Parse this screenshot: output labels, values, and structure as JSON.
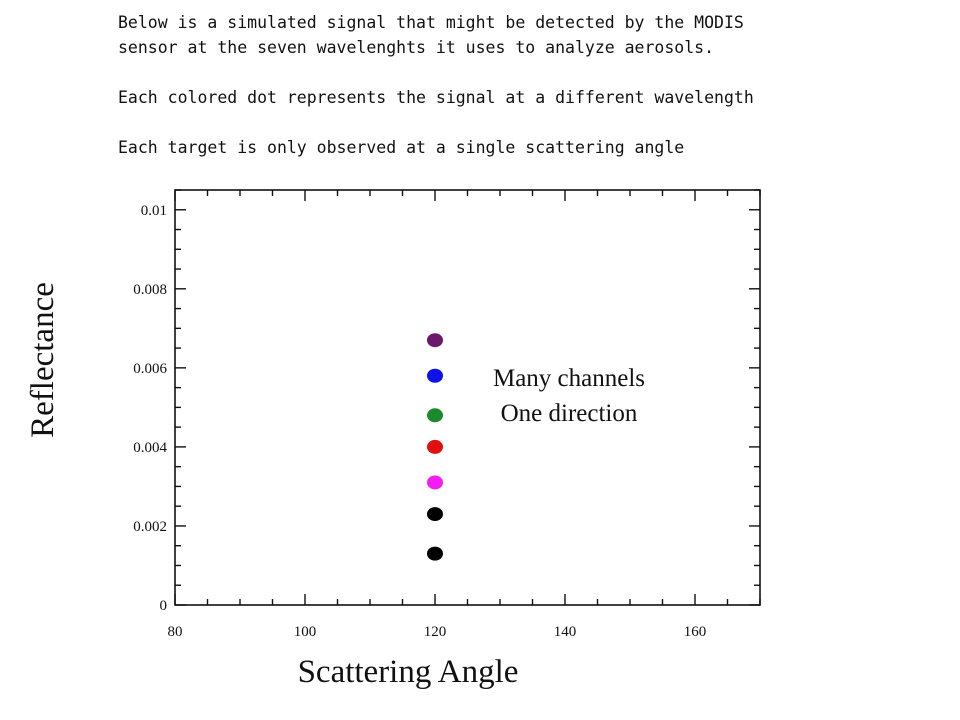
{
  "intro": {
    "lines": [
      "Below is a simulated signal that might be detected by the MODIS",
      "sensor at the seven wavelenghts it uses to analyze aerosols.",
      "Each colored dot represents the signal at a different wavelength",
      "Each target is only observed at a single scattering angle"
    ]
  },
  "chart_data": {
    "type": "scatter",
    "xlabel": "Scattering Angle",
    "ylabel": "Reflectance",
    "xlim": [
      80,
      170
    ],
    "ylim": [
      0,
      0.0105
    ],
    "x_ticks": [
      "80",
      "100",
      "120",
      "140",
      "160"
    ],
    "y_ticks": [
      "0",
      "0.002",
      "0.004",
      "0.006",
      "0.008",
      "0.01"
    ],
    "x_tick_values": [
      80,
      100,
      120,
      140,
      160
    ],
    "y_tick_values": [
      0,
      0.002,
      0.004,
      0.006,
      0.008,
      0.01
    ],
    "points": [
      {
        "x": 120,
        "y": 0.0067,
        "color": "#6b1a6b"
      },
      {
        "x": 120,
        "y": 0.0058,
        "color": "#1010e8"
      },
      {
        "x": 120,
        "y": 0.0048,
        "color": "#1a8a2a"
      },
      {
        "x": 120,
        "y": 0.004,
        "color": "#e01010"
      },
      {
        "x": 120,
        "y": 0.0031,
        "color": "#f21df2"
      },
      {
        "x": 120,
        "y": 0.0023,
        "color": "#000000"
      },
      {
        "x": 120,
        "y": 0.0013,
        "color": "#000000"
      }
    ],
    "annotation": [
      "Many channels",
      "One direction"
    ],
    "grid": false
  }
}
